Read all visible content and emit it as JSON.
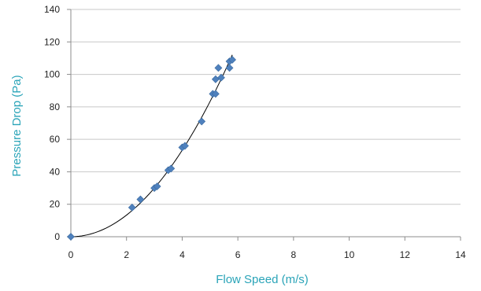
{
  "chart_data": {
    "type": "scatter",
    "title": "",
    "xlabel": "Flow Speed (m/s)",
    "ylabel": "Pressure Drop (Pa)",
    "xlim": [
      0,
      14
    ],
    "ylim": [
      0,
      140
    ],
    "xticks": [
      "0",
      "2",
      "4",
      "6",
      "8",
      "10",
      "12",
      "14"
    ],
    "yticks": [
      "0",
      "20",
      "40",
      "60",
      "80",
      "100",
      "120",
      "140"
    ],
    "grid": "horizontal",
    "legend": "none",
    "series": [
      {
        "marker": "diamond",
        "color": "#4f81bd",
        "points": [
          {
            "x": 0.0,
            "y": 0
          },
          {
            "x": 2.2,
            "y": 18
          },
          {
            "x": 2.5,
            "y": 23
          },
          {
            "x": 3.0,
            "y": 30
          },
          {
            "x": 3.1,
            "y": 31
          },
          {
            "x": 3.5,
            "y": 41
          },
          {
            "x": 3.6,
            "y": 42
          },
          {
            "x": 4.0,
            "y": 55
          },
          {
            "x": 4.1,
            "y": 56
          },
          {
            "x": 4.7,
            "y": 71
          },
          {
            "x": 5.1,
            "y": 88
          },
          {
            "x": 5.2,
            "y": 88
          },
          {
            "x": 5.2,
            "y": 97
          },
          {
            "x": 5.3,
            "y": 104
          },
          {
            "x": 5.4,
            "y": 98
          },
          {
            "x": 5.7,
            "y": 108
          },
          {
            "x": 5.7,
            "y": 104
          },
          {
            "x": 5.8,
            "y": 109
          }
        ]
      }
    ],
    "trendline": {
      "type": "polynomial",
      "x_range": [
        0,
        5.8
      ],
      "coefficients": [
        0,
        0,
        3.33
      ],
      "color": "#000000"
    }
  },
  "colors": {
    "axis_title": "#2aa4b8",
    "grid": "#c8c8c8",
    "axis": "#8c8c8c"
  }
}
